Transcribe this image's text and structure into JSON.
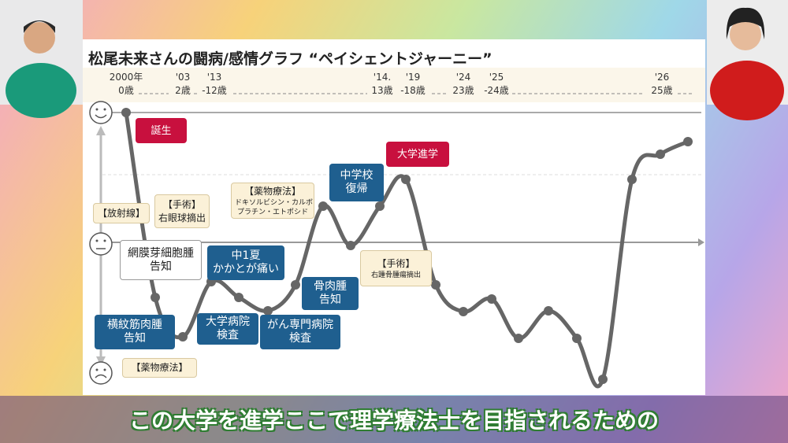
{
  "title": "松尾未来さんの闘病/感情グラフ “ペイシェントジャーニー”",
  "timeline": [
    {
      "year": "2000年",
      "age": "0歳"
    },
    {
      "year": "'03",
      "age": "2歳"
    },
    {
      "year": "'13",
      "age": "-12歳"
    },
    {
      "year": "'14.",
      "age": "13歳"
    },
    {
      "year": "'19",
      "age": "-18歳"
    },
    {
      "year": "'24",
      "age": "23歳"
    },
    {
      "year": "'25",
      "age": "-24歳"
    },
    {
      "year": "'26",
      "age": "25歳"
    }
  ],
  "annotations": [
    {
      "lines": [
        "誕生"
      ]
    },
    {
      "lines": [
        "【放射線】"
      ]
    },
    {
      "lines": [
        "【手術】",
        "右眼球摘出"
      ]
    },
    {
      "lines": [
        "網膜芽細胞腫",
        "告知"
      ]
    },
    {
      "lines": [
        "中1夏",
        "かかとが痛い"
      ]
    },
    {
      "lines": [
        "横紋筋肉腫",
        "告知"
      ]
    },
    {
      "lines": [
        "大学病院",
        "検査"
      ]
    },
    {
      "lines": [
        "がん専門病院",
        "検査"
      ]
    },
    {
      "lines": [
        "骨肉腫",
        "告知"
      ]
    },
    {
      "lines": [
        "【薬物療法】",
        "ドキソルビシン・カルボ",
        "プラチン・エトポシド"
      ]
    },
    {
      "lines": [
        "中学校",
        "復帰"
      ]
    },
    {
      "lines": [
        "大学進学"
      ]
    },
    {
      "lines": [
        "【手術】",
        "右踵骨腫瘍摘出"
      ]
    },
    {
      "lines": [
        "【薬物療法】"
      ]
    }
  ],
  "caption": "この大学を進学ここで理学療法士を目指されるための"
}
